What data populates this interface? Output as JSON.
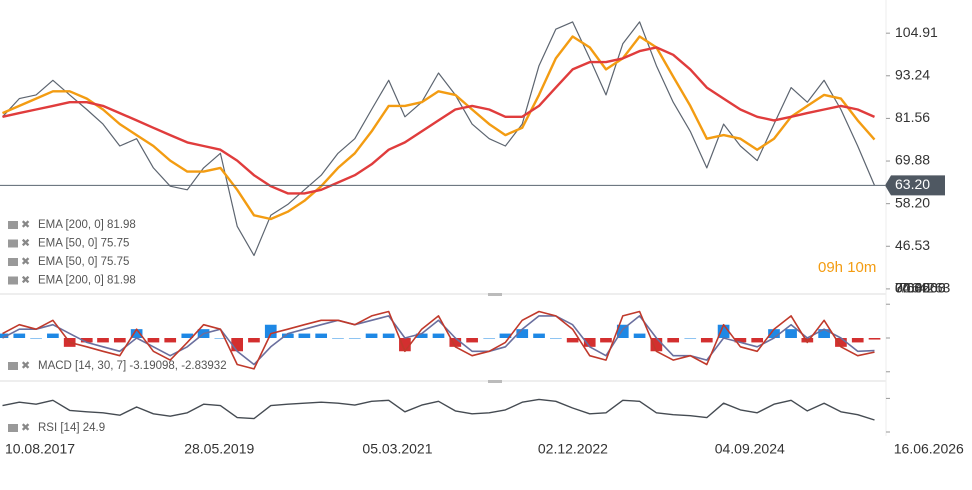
{
  "chart_data": [
    {
      "type": "line",
      "x": [
        "2017-04-01",
        "2017-06-01",
        "2017-08-01",
        "2017-10-01",
        "2017-12-01",
        "2018-02-01",
        "2018-04-01",
        "2018-06-01",
        "2018-08-01",
        "2018-10-01",
        "2018-12-01",
        "2019-02-01",
        "2019-04-01",
        "2019-06-01",
        "2019-08-01",
        "2019-10-01",
        "2019-12-01",
        "2020-02-01",
        "2020-04-01",
        "2020-06-01",
        "2020-08-01",
        "2020-10-01",
        "2020-12-01",
        "2021-02-01",
        "2021-04-01",
        "2021-06-01",
        "2021-08-01",
        "2021-10-01",
        "2021-12-01",
        "2022-02-01",
        "2022-04-01",
        "2022-06-01",
        "2022-08-01",
        "2022-10-01",
        "2022-12-01",
        "2023-02-01",
        "2023-04-01",
        "2023-06-01",
        "2023-08-01",
        "2023-10-01",
        "2023-12-01",
        "2024-02-01",
        "2024-04-01",
        "2024-06-01",
        "2024-08-01",
        "2024-10-01",
        "2024-12-01",
        "2025-02-01",
        "2025-04-01",
        "2025-06-01",
        "2025-08-01",
        "2025-10-01",
        "2025-12-01"
      ],
      "xlim": [
        "2017-03-23",
        "2026-01-08"
      ],
      "xticks": [
        {
          "value": "2017-08-10",
          "label": "10.08.2017"
        },
        {
          "value": "2019-05-28",
          "label": "28.05.2019"
        },
        {
          "value": "2021-03-05",
          "label": "05.03.2021"
        },
        {
          "value": "2022-12-02",
          "label": "02.12.2022"
        },
        {
          "value": "2024-09-04",
          "label": "04.09.2024"
        },
        {
          "value": "2026-06-16",
          "label": "16.06.2026"
        }
      ],
      "ylim": [
        34,
        114
      ],
      "yticks": [
        104.91,
        93.24,
        81.56,
        69.88,
        {
          "value": 58.2,
          "label": "58.20"
        },
        46.53,
        34.85
      ],
      "last_price": {
        "value": 63.2,
        "label": "63.20"
      },
      "legend": [
        "EMA [200, 0] 81.98",
        "EMA [50, 0] 75.75",
        "EMA [50, 0] 75.75",
        "EMA [200, 0] 81.98"
      ],
      "series": [
        {
          "color": "#5d6570",
          "values": [
            82,
            87,
            88,
            92,
            88,
            84,
            80,
            74,
            76,
            68,
            63,
            62,
            68,
            72,
            52,
            44,
            55,
            58,
            62,
            66,
            72,
            76,
            84,
            92,
            82,
            86,
            94,
            88,
            80,
            76,
            74,
            80,
            96,
            106,
            108,
            98,
            88,
            102,
            108,
            96,
            86,
            78,
            68,
            80,
            74,
            70,
            80,
            90,
            86,
            92,
            84,
            74,
            63.2
          ]
        },
        {
          "color": "#f39c12",
          "values": [
            83,
            85,
            87,
            89,
            89,
            87,
            84,
            80,
            77,
            74,
            70,
            67,
            67,
            68,
            62,
            55,
            54,
            56,
            59,
            63,
            68,
            72,
            78,
            85,
            85,
            86,
            89,
            88,
            84,
            80,
            77,
            79,
            88,
            98,
            104,
            101,
            95,
            98,
            104,
            101,
            93,
            85,
            76,
            77,
            76,
            73,
            76,
            82,
            85,
            88,
            87,
            81,
            75.75
          ]
        },
        {
          "color": "#e03c3c",
          "values": [
            82,
            83,
            84,
            85,
            86,
            86,
            85,
            83,
            81,
            79,
            77,
            75,
            74,
            73,
            70,
            66,
            63,
            61,
            61,
            62,
            64,
            66,
            69,
            73,
            75,
            78,
            81,
            84,
            85,
            84,
            82,
            82,
            85,
            90,
            95,
            97,
            97,
            98,
            100,
            101,
            99,
            95,
            90,
            87,
            84,
            82,
            81,
            82,
            83,
            84,
            85,
            84,
            81.98
          ]
        }
      ]
    },
    {
      "type": "macd",
      "label": "MACD [14, 30, 7] -3.19098, -2.83932",
      "ylim": [
        -9.5,
        9.5
      ],
      "yticks": [
        7.64263,
        {
          "value": 0,
          "label": "0.00000"
        },
        -7.64263
      ],
      "macd": {
        "color": "#c0392b",
        "values": [
          1,
          3,
          2,
          4,
          -1,
          -2,
          -3,
          -4,
          2,
          -3,
          -5,
          -1,
          3,
          2,
          -6,
          -7,
          1,
          2,
          3,
          4,
          4,
          3,
          5,
          6,
          -3,
          2,
          5,
          -2,
          -4,
          -3,
          -1,
          4,
          6,
          5,
          2,
          -4,
          -5,
          5,
          6,
          -3,
          -5,
          -4,
          -6,
          3,
          -2,
          -3,
          2,
          5,
          -1,
          4,
          -2,
          -4,
          -3.19098
        ]
      },
      "signal": {
        "color": "#6a6f9e",
        "values": [
          0,
          2,
          2,
          3,
          1,
          -1,
          -2,
          -3,
          0,
          -2,
          -4,
          -2,
          1,
          2,
          -3,
          -6,
          -2,
          1,
          2,
          3,
          4,
          3,
          4,
          5,
          0,
          1,
          4,
          0,
          -3,
          -3,
          -2,
          2,
          5,
          5,
          3,
          -2,
          -4,
          2,
          5,
          0,
          -4,
          -4,
          -5,
          0,
          -1,
          -2,
          0,
          3,
          0,
          2,
          0,
          -3,
          -2.83932
        ]
      },
      "histogram": {
        "colors": [
          "#1e88e5",
          "#d32f2f"
        ],
        "values": [
          1,
          1,
          0,
          1,
          -2,
          -1,
          -1,
          -1,
          2,
          -1,
          -1,
          1,
          2,
          0,
          -3,
          -1,
          3,
          1,
          1,
          1,
          0,
          0,
          1,
          1,
          -3,
          1,
          1,
          -2,
          -1,
          0,
          1,
          2,
          1,
          0,
          -1,
          -2,
          -1,
          3,
          1,
          -3,
          -1,
          0,
          -1,
          3,
          -1,
          -1,
          2,
          2,
          -1,
          2,
          -2,
          -1,
          -0.35166
        ]
      }
    },
    {
      "type": "rsi",
      "label": "RSI [14] 24.9",
      "ylim": [
        0,
        100
      ],
      "yticks": [
        {
          "value": 70,
          "label": "70.0"
        },
        {
          "value": 0,
          "label": "0.0"
        }
      ],
      "color": "#454b52",
      "values": [
        55,
        62,
        58,
        66,
        45,
        42,
        40,
        35,
        52,
        38,
        33,
        40,
        58,
        55,
        30,
        28,
        55,
        58,
        60,
        62,
        60,
        56,
        64,
        66,
        42,
        56,
        64,
        44,
        38,
        40,
        46,
        62,
        68,
        64,
        50,
        38,
        40,
        66,
        64,
        40,
        36,
        34,
        30,
        60,
        46,
        40,
        58,
        66,
        44,
        60,
        42,
        36,
        24.9
      ]
    }
  ],
  "countdown": "09h 10m"
}
